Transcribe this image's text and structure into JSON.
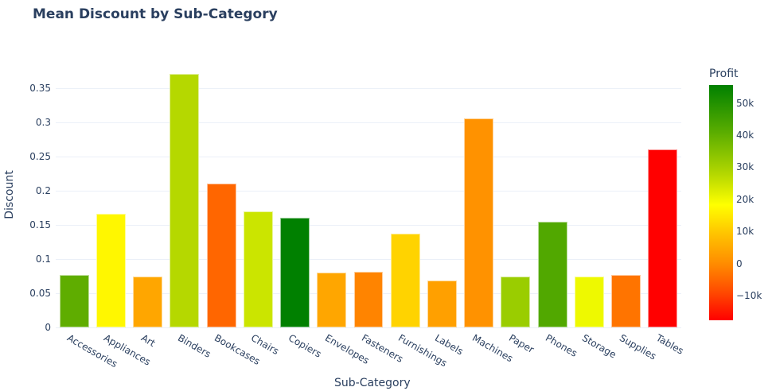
{
  "chart_data": {
    "type": "bar",
    "title": "Mean Discount by Sub-Category",
    "xlabel": "Sub-Category",
    "ylabel": "Discount",
    "ylim": [
      0,
      0.375
    ],
    "yticks": [
      "0",
      "0.05",
      "0.1",
      "0.15",
      "0.2",
      "0.25",
      "0.3",
      "0.35"
    ],
    "grid": true,
    "categories": [
      "Accessories",
      "Appliances",
      "Art",
      "Binders",
      "Bookcases",
      "Chairs",
      "Copiers",
      "Envelopes",
      "Fasteners",
      "Furnishings",
      "Labels",
      "Machines",
      "Paper",
      "Phones",
      "Storage",
      "Supplies",
      "Tables"
    ],
    "values": [
      0.077,
      0.166,
      0.074,
      0.372,
      0.211,
      0.17,
      0.161,
      0.08,
      0.082,
      0.138,
      0.069,
      0.306,
      0.075,
      0.155,
      0.075,
      0.077,
      0.261
    ],
    "bar_colors": [
      "#5fad00",
      "#fff700",
      "#ffa600",
      "#b5d800",
      "#ff6600",
      "#cbe500",
      "#008000",
      "#ffa600",
      "#ff8400",
      "#ffd300",
      "#ffa000",
      "#ff9200",
      "#9acd00",
      "#51a800",
      "#eef900",
      "#ff7400",
      "#ff0000"
    ],
    "color_variable": "Profit",
    "colorbar": {
      "title": "Profit",
      "ticks": [
        "50k",
        "40k",
        "30k",
        "20k",
        "10k",
        "0",
        "−10k"
      ],
      "range": [
        -17700,
        55600
      ],
      "colors": [
        "#ff0000",
        "#ff8c00",
        "#ffff00",
        "#b5d800",
        "#008000"
      ]
    },
    "legend": "colorbar right"
  }
}
